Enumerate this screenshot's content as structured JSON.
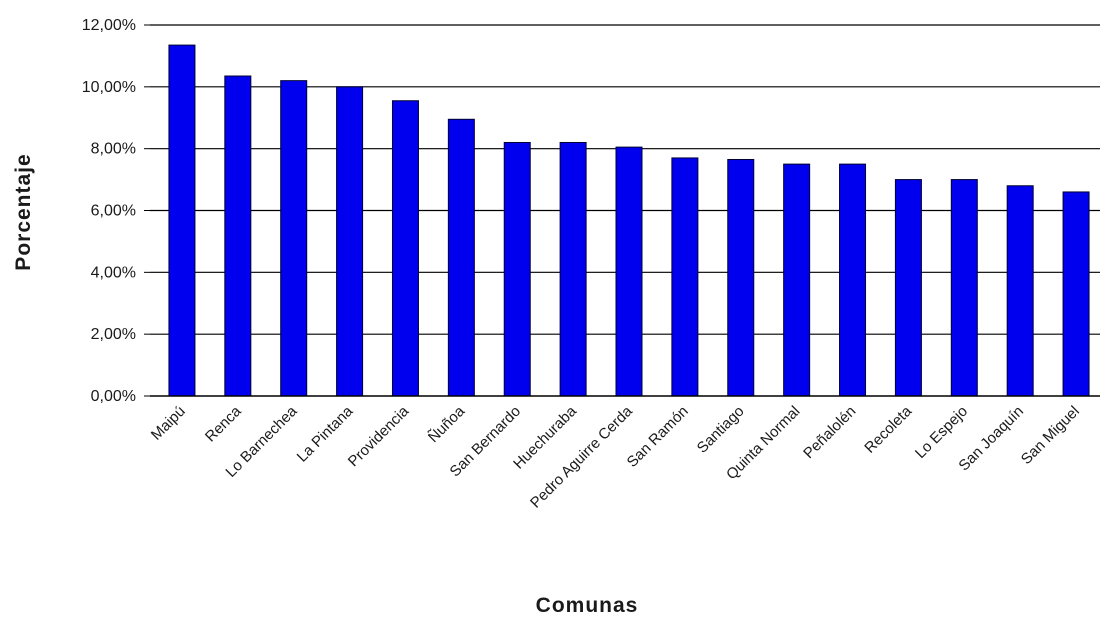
{
  "chart_data": {
    "type": "bar",
    "title": "",
    "xlabel": "Comunas",
    "ylabel": "Porcentaje",
    "ylim": [
      0,
      12
    ],
    "yticks": [
      "0,00%",
      "2,00%",
      "4,00%",
      "6,00%",
      "8,00%",
      "10,00%",
      "12,00%"
    ],
    "grid": true,
    "categories": [
      "Maipú",
      "Renca",
      "Lo Barnechea",
      "La Pintana",
      "Providencia",
      "Ñuñoa",
      "San Bernardo",
      "Huechuraba",
      "Pedro Aguirre Cerda",
      "San Ramón",
      "Santiago",
      "Quinta Normal",
      "Peñalolén",
      "Recoleta",
      "Lo Espejo",
      "San Joaquín",
      "San Miguel"
    ],
    "values": [
      11.35,
      10.35,
      10.2,
      10.0,
      9.55,
      8.95,
      8.2,
      8.2,
      8.05,
      7.7,
      7.65,
      7.5,
      7.5,
      7.0,
      7.0,
      6.8,
      6.6
    ],
    "colors": {
      "bar": "#0000ee",
      "bar_edge": "#000033",
      "grid": "#000000"
    }
  }
}
